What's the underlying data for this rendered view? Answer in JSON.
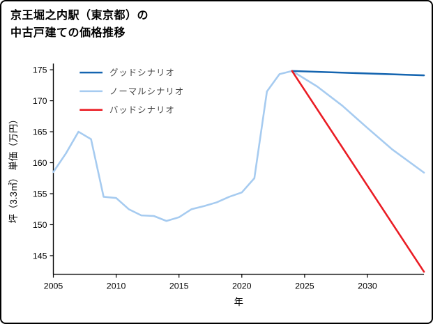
{
  "header": {
    "title_line1": "京王堀之内駅（東京都）の",
    "title_line2": "中古戸建ての価格推移"
  },
  "chart_data": {
    "type": "line",
    "title": "京王堀之内駅（東京都）の中古戸建ての価格推移",
    "xlabel": "年",
    "ylabel": "坪（3.3㎡） 単価（万円）",
    "xlim": [
      2005,
      2034.5
    ],
    "ylim": [
      142,
      176
    ],
    "xticks": [
      2005,
      2010,
      2015,
      2020,
      2025,
      2030
    ],
    "yticks": [
      145,
      150,
      155,
      160,
      165,
      170,
      175
    ],
    "grid": false,
    "legend_position": "upper-left",
    "axis_color": "#000000",
    "tick_label_color": "#000000",
    "legend_text_color": "#444444",
    "series": [
      {
        "name": "グッドシナリオ",
        "color": "#1565b0",
        "x": [
          2024,
          2034.5
        ],
        "y": [
          174.8,
          174.1
        ]
      },
      {
        "name": "ノーマルシナリオ",
        "color": "#a6cbf0",
        "x": [
          2005,
          2006,
          2007,
          2008,
          2009,
          2010,
          2011,
          2012,
          2013,
          2014,
          2015,
          2016,
          2017,
          2018,
          2019,
          2020,
          2021,
          2022,
          2023,
          2024,
          2026,
          2028,
          2030,
          2032,
          2034.5
        ],
        "y": [
          158.5,
          161.5,
          165.0,
          163.8,
          154.5,
          154.3,
          152.5,
          151.5,
          151.4,
          150.6,
          151.2,
          152.5,
          153.0,
          153.6,
          154.5,
          155.2,
          157.5,
          171.5,
          174.3,
          174.8,
          172.3,
          169.2,
          165.6,
          162.1,
          158.4
        ]
      },
      {
        "name": "バッドシナリオ",
        "color": "#ea1c24",
        "x": [
          2024,
          2034.5
        ],
        "y": [
          174.8,
          142.4
        ]
      }
    ]
  }
}
